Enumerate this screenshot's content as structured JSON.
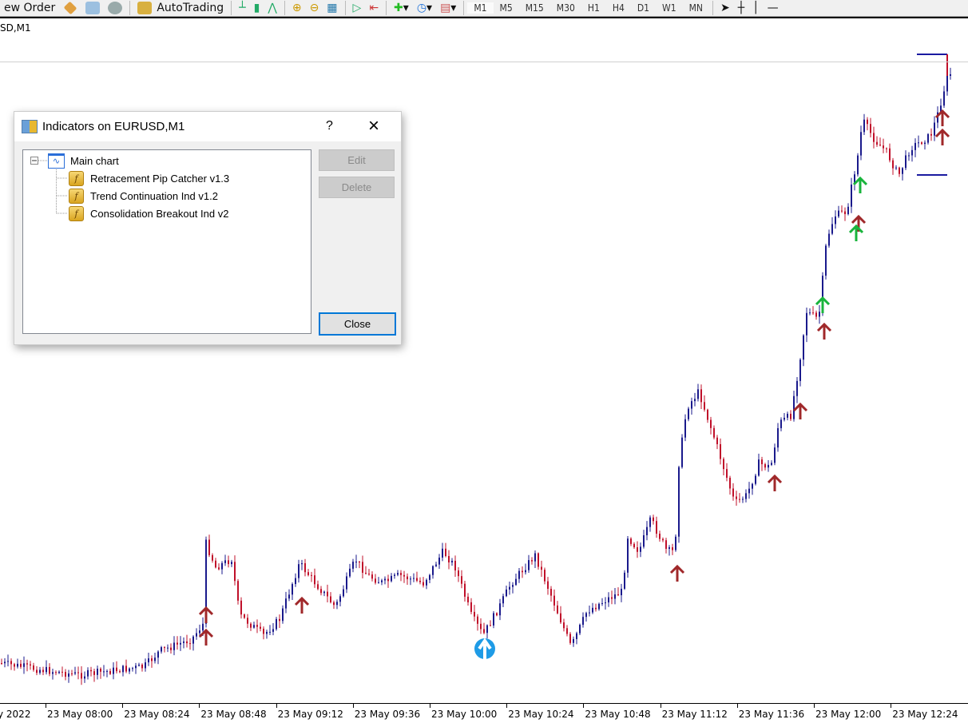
{
  "toolbar": {
    "new_order_label": "ew Order",
    "autotrading_label": "AutoTrading",
    "timeframes": [
      "M1",
      "M5",
      "M15",
      "M30",
      "H1",
      "H4",
      "D1",
      "W1",
      "MN"
    ],
    "active_timeframe": "M1"
  },
  "chart": {
    "symbol_label": "SD,M1",
    "x_ticks": [
      "y 2022",
      "23 May 08:00",
      "23 May 08:24",
      "23 May 08:48",
      "23 May 09:12",
      "23 May 09:36",
      "23 May 10:00",
      "23 May 10:24",
      "23 May 10:48",
      "23 May 11:12",
      "23 May 11:36",
      "23 May 12:00",
      "23 May 12:24"
    ],
    "colors": {
      "bull": "#1a1a8c",
      "bear": "#c0102a",
      "signal_up": "#a0282a",
      "signal_green": "#19b43c",
      "signal_blue": "#1e9be6",
      "level_line": "#1a1aa0"
    }
  },
  "dialog": {
    "title": "Indicators on EURUSD,M1",
    "help_label": "?",
    "close_icon": "×",
    "tree": {
      "root": "Main chart",
      "items": [
        "Retracement Pip Catcher v1.3",
        "Trend Continuation Ind v1.2",
        "Consolidation Breakout Ind v2"
      ]
    },
    "edit_label": "Edit",
    "delete_label": "Delete",
    "close_label": "Close"
  }
}
